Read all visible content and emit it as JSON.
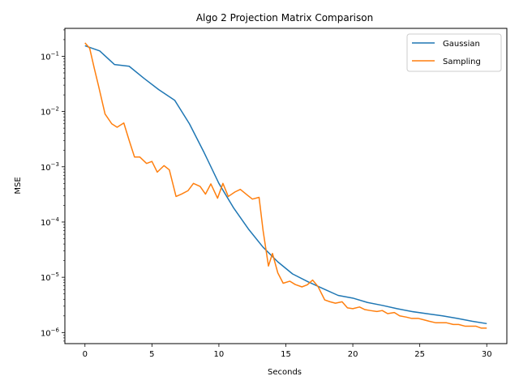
{
  "chart_data": {
    "type": "line",
    "title": "Algo 2 Projection Matrix Comparison",
    "xlabel": "Seconds",
    "ylabel": "MSE",
    "xlim": [
      -1.5,
      31.5
    ],
    "ylim": [
      6.3e-07,
      0.32
    ],
    "yscale": "log",
    "grid": false,
    "legend_position": "top-right",
    "x_ticks": [
      0,
      5,
      10,
      15,
      20,
      25,
      30
    ],
    "y_ticks": [
      {
        "value": 1e-06,
        "base": "10",
        "exp": "−6"
      },
      {
        "value": 1e-05,
        "base": "10",
        "exp": "−5"
      },
      {
        "value": 0.0001,
        "base": "10",
        "exp": "−4"
      },
      {
        "value": 0.001,
        "base": "10",
        "exp": "−3"
      },
      {
        "value": 0.01,
        "base": "10",
        "exp": "−2"
      },
      {
        "value": 0.1,
        "base": "10",
        "exp": "−1"
      }
    ],
    "series": [
      {
        "name": "Gaussian",
        "color": "#1f77b4",
        "x": [
          0,
          1.1,
          2.2,
          3.3,
          4.4,
          5.5,
          6.7,
          7.8,
          8.9,
          10.0,
          11.1,
          12.2,
          13.3,
          14.4,
          15.5,
          16.7,
          17.8,
          18.9,
          20.0,
          21.1,
          22.2,
          23.3,
          24.4,
          25.5,
          26.7,
          27.8,
          28.9,
          30.0
        ],
        "y": [
          0.155,
          0.125,
          0.071,
          0.066,
          0.04,
          0.025,
          0.016,
          0.006,
          0.0018,
          0.0005,
          0.00018,
          7.5e-05,
          3.5e-05,
          1.9e-05,
          1.15e-05,
          8.2e-06,
          6.2e-06,
          4.7e-06,
          4.2e-06,
          3.5e-06,
          3.1e-06,
          2.7e-06,
          2.4e-06,
          2.2e-06,
          2e-06,
          1.8e-06,
          1.6e-06,
          1.45e-06
        ]
      },
      {
        "name": "Sampling",
        "color": "#ff7f0e",
        "x": [
          0,
          0.35,
          0.7,
          1.0,
          1.5,
          2.0,
          2.4,
          2.9,
          3.3,
          3.7,
          4.1,
          4.6,
          5.0,
          5.4,
          5.9,
          6.3,
          6.8,
          7.2,
          7.7,
          8.1,
          8.6,
          9.0,
          9.4,
          9.9,
          10.3,
          10.7,
          11.2,
          11.6,
          12.1,
          12.5,
          13.0,
          13.3,
          13.7,
          14.0,
          14.4,
          14.8,
          15.3,
          15.7,
          16.2,
          16.6,
          17.0,
          17.4,
          17.9,
          18.3,
          18.7,
          19.2,
          19.6,
          20.0,
          20.5,
          20.9,
          21.3,
          21.8,
          22.2,
          22.6,
          23.1,
          23.5,
          24.0,
          24.4,
          24.9,
          25.3,
          25.7,
          26.2,
          26.6,
          27.0,
          27.5,
          27.9,
          28.4,
          28.8,
          29.2,
          29.6,
          30.0
        ],
        "y": [
          0.175,
          0.14,
          0.06,
          0.03,
          0.009,
          0.006,
          0.0052,
          0.0062,
          0.003,
          0.0015,
          0.0015,
          0.00115,
          0.00125,
          0.0008,
          0.00105,
          0.00088,
          0.00029,
          0.00032,
          0.00037,
          0.0005,
          0.00044,
          0.00032,
          0.00049,
          0.00027,
          0.0005,
          0.00029,
          0.00035,
          0.00039,
          0.00031,
          0.00026,
          0.00028,
          7e-05,
          1.6e-05,
          2.7e-05,
          1.2e-05,
          7.8e-06,
          8.5e-06,
          7.4e-06,
          6.7e-06,
          7.3e-06,
          8.9e-06,
          6.8e-06,
          3.9e-06,
          3.6e-06,
          3.4e-06,
          3.6e-06,
          2.8e-06,
          2.7e-06,
          2.9e-06,
          2.6e-06,
          2.5e-06,
          2.4e-06,
          2.5e-06,
          2.2e-06,
          2.3e-06,
          2e-06,
          1.9e-06,
          1.8e-06,
          1.8e-06,
          1.7e-06,
          1.6e-06,
          1.5e-06,
          1.5e-06,
          1.5e-06,
          1.4e-06,
          1.4e-06,
          1.3e-06,
          1.3e-06,
          1.3e-06,
          1.2e-06,
          1.2e-06
        ]
      }
    ]
  }
}
